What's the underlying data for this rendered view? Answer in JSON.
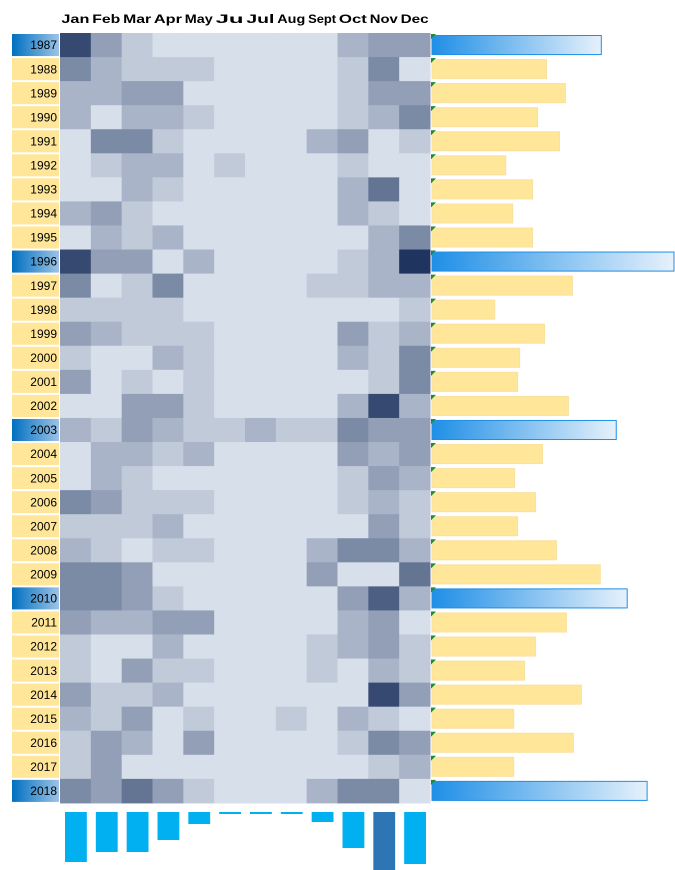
{
  "chart_data": {
    "type": "heatmap",
    "categories": [
      "Jan",
      "Feb",
      "Mar",
      "Apr",
      "May",
      "Ju",
      "Jul",
      "Aug",
      "Sept",
      "Oct",
      "Nov",
      "Dec"
    ],
    "rows": [
      "1987",
      "1988",
      "1989",
      "1990",
      "1991",
      "1992",
      "1993",
      "1994",
      "1995",
      "1996",
      "1997",
      "1998",
      "1999",
      "2000",
      "2001",
      "2002",
      "2003",
      "2004",
      "2005",
      "2006",
      "2007",
      "2008",
      "2009",
      "2010",
      "2011",
      "2012",
      "2013",
      "2014",
      "2015",
      "2016",
      "2017",
      "2018"
    ],
    "values": [
      [
        8,
        4,
        2,
        1,
        1,
        1,
        1,
        1,
        1,
        3,
        4,
        4
      ],
      [
        5,
        3,
        2,
        2,
        2,
        1,
        1,
        1,
        1,
        2,
        5,
        1
      ],
      [
        3,
        3,
        4,
        4,
        1,
        1,
        1,
        1,
        1,
        2,
        4,
        4
      ],
      [
        3,
        1,
        3,
        3,
        2,
        1,
        1,
        1,
        1,
        2,
        3,
        5
      ],
      [
        1,
        5,
        5,
        2,
        1,
        1,
        1,
        1,
        3,
        4,
        1,
        2
      ],
      [
        1,
        2,
        3,
        3,
        1,
        2,
        1,
        1,
        1,
        2,
        1,
        1
      ],
      [
        1,
        1,
        3,
        2,
        1,
        1,
        1,
        1,
        1,
        3,
        6,
        1
      ],
      [
        3,
        4,
        2,
        1,
        1,
        1,
        1,
        1,
        1,
        3,
        2,
        1
      ],
      [
        1,
        3,
        2,
        3,
        1,
        1,
        1,
        1,
        1,
        1,
        3,
        5
      ],
      [
        8,
        4,
        4,
        1,
        3,
        1,
        1,
        1,
        1,
        2,
        3,
        9
      ],
      [
        5,
        1,
        2,
        5,
        1,
        1,
        1,
        1,
        2,
        2,
        3,
        3
      ],
      [
        2,
        2,
        2,
        2,
        1,
        1,
        1,
        1,
        1,
        1,
        1,
        2
      ],
      [
        4,
        3,
        2,
        2,
        2,
        1,
        1,
        1,
        1,
        4,
        2,
        3
      ],
      [
        2,
        1,
        1,
        3,
        2,
        1,
        1,
        1,
        1,
        3,
        2,
        5
      ],
      [
        4,
        1,
        2,
        1,
        2,
        1,
        1,
        1,
        1,
        1,
        2,
        5
      ],
      [
        1,
        1,
        4,
        4,
        2,
        1,
        1,
        1,
        1,
        3,
        8,
        3
      ],
      [
        3,
        2,
        4,
        3,
        2,
        2,
        3,
        2,
        2,
        5,
        4,
        4
      ],
      [
        1,
        3,
        3,
        2,
        3,
        1,
        1,
        1,
        1,
        4,
        3,
        4
      ],
      [
        1,
        3,
        2,
        1,
        1,
        1,
        1,
        1,
        1,
        2,
        4,
        3
      ],
      [
        5,
        4,
        2,
        2,
        2,
        1,
        1,
        1,
        1,
        2,
        3,
        2
      ],
      [
        2,
        2,
        2,
        3,
        1,
        1,
        1,
        1,
        1,
        1,
        4,
        2
      ],
      [
        3,
        2,
        1,
        2,
        2,
        1,
        1,
        1,
        3,
        5,
        5,
        3
      ],
      [
        5,
        5,
        4,
        1,
        1,
        1,
        1,
        1,
        4,
        1,
        1,
        6
      ],
      [
        5,
        5,
        4,
        2,
        1,
        1,
        1,
        1,
        1,
        4,
        7,
        3
      ],
      [
        4,
        3,
        3,
        4,
        4,
        1,
        1,
        1,
        1,
        3,
        4,
        1
      ],
      [
        2,
        1,
        1,
        3,
        1,
        1,
        1,
        1,
        2,
        3,
        4,
        2
      ],
      [
        2,
        1,
        4,
        2,
        2,
        1,
        1,
        1,
        2,
        1,
        3,
        2
      ],
      [
        4,
        2,
        2,
        3,
        1,
        1,
        1,
        1,
        1,
        1,
        8,
        4
      ],
      [
        3,
        2,
        4,
        1,
        2,
        1,
        1,
        2,
        1,
        3,
        2,
        1
      ],
      [
        2,
        4,
        3,
        1,
        4,
        1,
        1,
        1,
        1,
        2,
        5,
        4
      ],
      [
        2,
        4,
        1,
        1,
        1,
        1,
        1,
        1,
        1,
        1,
        2,
        3
      ],
      [
        5,
        4,
        6,
        4,
        2,
        1,
        1,
        1,
        3,
        5,
        5,
        1
      ]
    ],
    "colorlim": [
      0,
      9
    ],
    "colors": [
      "#eef4fc",
      "#1f3560"
    ],
    "row_totals": {
      "values": [
        170,
        115,
        134,
        106,
        128,
        74,
        101,
        81,
        101,
        243,
        141,
        63,
        113,
        88,
        86,
        137,
        185,
        111,
        83,
        104,
        86,
        125,
        169,
        196,
        135,
        104,
        93,
        150,
        82,
        142,
        82,
        216
      ],
      "xlim": [
        0,
        243
      ],
      "color": "#ffe699",
      "highlight_color": "#1f8fe6",
      "highlighted": [
        true,
        false,
        false,
        false,
        false,
        false,
        false,
        false,
        false,
        true,
        false,
        false,
        false,
        false,
        false,
        false,
        true,
        false,
        false,
        false,
        false,
        false,
        false,
        true,
        false,
        false,
        false,
        false,
        false,
        false,
        false,
        true
      ]
    },
    "column_totals": {
      "values": [
        50,
        40,
        40,
        28,
        12,
        2,
        2,
        2,
        10,
        36,
        58,
        52
      ],
      "ylim": [
        0,
        58
      ],
      "color": "#00b0f0",
      "highlight_color": "#2e75b6",
      "highlighted": [
        false,
        false,
        false,
        false,
        false,
        false,
        false,
        false,
        false,
        false,
        true,
        false
      ]
    }
  }
}
